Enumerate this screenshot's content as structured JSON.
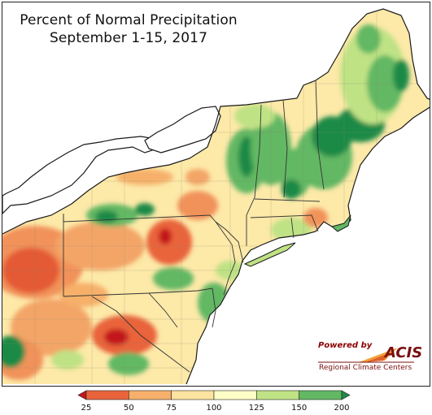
{
  "title": {
    "line1": "Percent of Normal Precipitation",
    "line2": "September 1-15, 2017"
  },
  "logo": {
    "powered_by": "Powered by",
    "brand": "ACIS",
    "subtitle": "Regional Climate Centers"
  },
  "legend": {
    "labels": [
      "25",
      "50",
      "75",
      "100",
      "125",
      "150",
      "200"
    ],
    "colors": [
      "#c3161c",
      "#e9633b",
      "#f6b06b",
      "#fde3a0",
      "#fdfdc6",
      "#bfe285",
      "#62b863",
      "#1f8a46"
    ]
  },
  "colors": {
    "water": "#ffffff",
    "outline": "#1a1a1a",
    "state_border": "#333333"
  }
}
